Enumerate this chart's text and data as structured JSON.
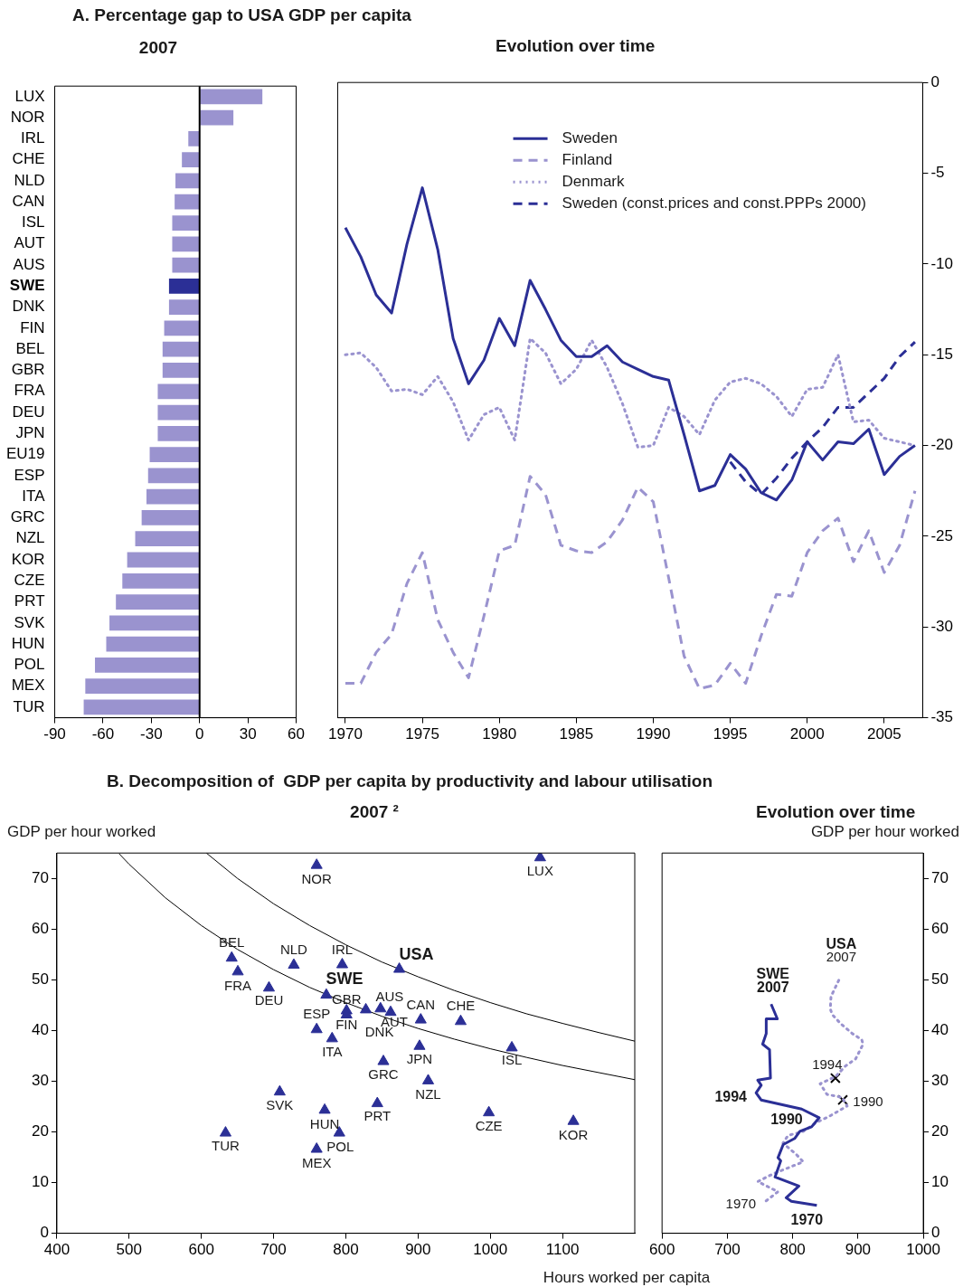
{
  "chart_data": [
    {
      "type": "bar",
      "orientation": "horizontal",
      "title": "A. Percentage gap to USA GDP per capita",
      "subtitle": "2007",
      "categories": [
        "LUX",
        "NOR",
        "IRL",
        "CHE",
        "NLD",
        "CAN",
        "ISL",
        "AUT",
        "AUS",
        "SWE",
        "DNK",
        "FIN",
        "BEL",
        "GBR",
        "FRA",
        "DEU",
        "JPN",
        "EU19",
        "ESP",
        "ITA",
        "GRC",
        "NZL",
        "KOR",
        "CZE",
        "PRT",
        "SVK",
        "HUN",
        "POL",
        "MEX",
        "TUR"
      ],
      "values": [
        39,
        21,
        -7,
        -11,
        -15,
        -15.5,
        -17,
        -17,
        -17,
        -19,
        -19,
        -22,
        -23,
        -23,
        -26,
        -26,
        -26,
        -31,
        -32,
        -33,
        -36,
        -40,
        -45,
        -48,
        -52,
        -56,
        -58,
        -65,
        -71,
        -72
      ],
      "colors": [
        "#9a93cf",
        "#9a93cf",
        "#9a93cf",
        "#9a93cf",
        "#9a93cf",
        "#9a93cf",
        "#9a93cf",
        "#9a93cf",
        "#9a93cf",
        "#2b2f96",
        "#9a93cf",
        "#9a93cf",
        "#9a93cf",
        "#9a93cf",
        "#9a93cf",
        "#9a93cf",
        "#9a93cf",
        "#9a93cf",
        "#9a93cf",
        "#9a93cf",
        "#9a93cf",
        "#9a93cf",
        "#9a93cf",
        "#9a93cf",
        "#9a93cf",
        "#9a93cf",
        "#9a93cf",
        "#9a93cf",
        "#9a93cf",
        "#9a93cf"
      ],
      "xlim": [
        -90,
        60
      ],
      "xticks": [
        -90,
        -60,
        -30,
        0,
        30,
        60
      ]
    },
    {
      "type": "line",
      "title": "Evolution over time",
      "legend": "top",
      "x": [
        1970,
        1971,
        1972,
        1973,
        1974,
        1975,
        1976,
        1977,
        1978,
        1979,
        1980,
        1981,
        1982,
        1983,
        1984,
        1985,
        1986,
        1987,
        1988,
        1989,
        1990,
        1991,
        1992,
        1993,
        1994,
        1995,
        1996,
        1997,
        1998,
        1999,
        2000,
        2001,
        2002,
        2003,
        2004,
        2005,
        2006,
        2007
      ],
      "series": [
        {
          "name": "Sweden",
          "color": "#2b2f96",
          "line_style": "solid",
          "values": [
            -8.0,
            -9.6,
            -11.7,
            -12.7,
            -8.9,
            -5.8,
            -9.2,
            -14.1,
            -16.6,
            -15.3,
            -13.0,
            -14.5,
            -10.9,
            -12.5,
            -14.2,
            -15.1,
            -15.1,
            -14.5,
            -15.4,
            -15.8,
            -16.2,
            -16.4,
            -19.4,
            -22.5,
            -22.2,
            -20.5,
            -21.3,
            -22.6,
            -23.0,
            -21.9,
            -19.8,
            -20.8,
            -19.8,
            -19.9,
            -19.1,
            -21.6,
            -20.6,
            -20.0
          ]
        },
        {
          "name": "Finland",
          "color": "#9a93cf",
          "line_style": "dashed",
          "values": [
            -33.1,
            -33.1,
            -31.4,
            -30.4,
            -27.6,
            -25.9,
            -29.6,
            -31.4,
            -32.8,
            -29.4,
            -25.8,
            -25.5,
            -21.7,
            -22.7,
            -25.5,
            -25.8,
            -25.9,
            -25.3,
            -24.1,
            -22.3,
            -23.1,
            -27.3,
            -31.6,
            -33.4,
            -33.2,
            -32.0,
            -33.1,
            -30.5,
            -28.2,
            -28.3,
            -25.9,
            -24.7,
            -24.0,
            -26.4,
            -24.7,
            -27.0,
            -25.5,
            -22.5
          ]
        },
        {
          "name": "Denmark",
          "color": "#9a93cf",
          "line_style": "dotted",
          "values": [
            -15.0,
            -14.9,
            -15.7,
            -17.0,
            -16.9,
            -17.2,
            -16.2,
            -17.6,
            -19.7,
            -18.3,
            -17.9,
            -19.7,
            -14.1,
            -14.9,
            -16.6,
            -15.8,
            -14.2,
            -15.7,
            -17.7,
            -20.1,
            -20.0,
            -17.9,
            -18.4,
            -19.4,
            -17.5,
            -16.5,
            -16.3,
            -16.6,
            -17.3,
            -18.4,
            -16.9,
            -16.8,
            -15.0,
            -18.7,
            -18.6,
            -19.6,
            -19.8,
            -20.0
          ]
        },
        {
          "name": "Sweden (const.prices and const.PPPs 2000)",
          "color": "#2b2f96",
          "line_style": "dashed",
          "x": [
            1995,
            1996,
            1997,
            1998,
            1999,
            2000,
            2001,
            2002,
            2003,
            2004,
            2005,
            2006,
            2007
          ],
          "values": [
            -20.9,
            -22.0,
            -22.7,
            -21.8,
            -20.7,
            -19.8,
            -19.0,
            -17.9,
            -17.9,
            -17.1,
            -16.3,
            -15.1,
            -14.3
          ]
        }
      ],
      "xlim": [
        1969.5,
        2007.5
      ],
      "xticks": [
        1970,
        1975,
        1980,
        1985,
        1990,
        1995,
        2000,
        2005
      ],
      "ylim": [
        -35,
        0
      ],
      "yticks": [
        0,
        -5,
        -10,
        -15,
        -20,
        -25,
        -30,
        -35
      ]
    },
    {
      "type": "scatter",
      "title": "B. Decomposition of  GDP per capita by productivity and labour utilisation",
      "subtitle": "2007 ²",
      "ylabel": "GDP per hour worked",
      "series": [
        {
          "type": "scatter",
          "marker": "triangle",
          "color": "#2b2f96",
          "x": [
            759.6,
            1069,
            642,
            650.5,
            728,
            795,
            874,
            693.6,
            773,
            801,
            801,
            827.7,
            848,
            862,
            903.7,
            959,
            759.6,
            781,
            902,
            1029.8,
            852,
            914,
            708.5,
            843.6,
            770.7,
            998,
            1115,
            633.5,
            791,
            759.6
          ],
          "values": [
            72.6,
            74.1,
            54.3,
            51.6,
            52.9,
            53.0,
            52.1,
            48.4,
            47.0,
            43.9,
            43.1,
            44.1,
            44.3,
            43.6,
            42.1,
            41.8,
            40.2,
            38.4,
            36.9,
            36.6,
            33.9,
            30.1,
            27.9,
            25.6,
            24.3,
            23.8,
            22.1,
            19.8,
            19.8,
            16.6
          ]
        },
        {
          "type": "line",
          "line_style": "solid",
          "marker": "none",
          "color": "#000000",
          "x": [
            486,
            500,
            550,
            600,
            650,
            700,
            750,
            800,
            850,
            900,
            950,
            1000,
            1050,
            1100,
            1150,
            1200
          ],
          "values": [
            74.9,
            72.8,
            66.2,
            60.7,
            56.0,
            52.0,
            48.5,
            45.5,
            42.8,
            40.4,
            38.3,
            36.4,
            34.7,
            33.1,
            31.7,
            30.3
          ]
        },
        {
          "type": "line",
          "line_style": "solid",
          "marker": "none",
          "color": "#000000",
          "x": [
            607,
            650,
            700,
            750,
            800,
            850,
            900,
            950,
            1000,
            1050,
            1100,
            1150,
            1200
          ],
          "values": [
            75.0,
            70.0,
            65.0,
            60.7,
            56.9,
            53.5,
            50.6,
            47.9,
            45.5,
            43.3,
            41.4,
            39.6,
            37.9
          ]
        }
      ],
      "annotations": [
        {
          "text": "NOR",
          "x": 759.6,
          "y": 72.6
        },
        {
          "text": "LUX",
          "x": 1069,
          "y": 74.1
        },
        {
          "text": "BEL",
          "x": 642,
          "y": 54.3
        },
        {
          "text": "FRA",
          "x": 650.5,
          "y": 51.6
        },
        {
          "text": "NLD",
          "x": 728,
          "y": 52.9
        },
        {
          "text": "IRL",
          "x": 795,
          "y": 53.0
        },
        {
          "text": "USA",
          "x": 874,
          "y": 52.1
        },
        {
          "text": "SWE",
          "x": 773,
          "y": 47.0
        },
        {
          "text": "DEU",
          "x": 693.6,
          "y": 48.4
        },
        {
          "text": "GBR",
          "x": 801,
          "y": 43.9
        },
        {
          "text": "AUS",
          "x": 848,
          "y": 44.3
        },
        {
          "text": "CAN",
          "x": 903.7,
          "y": 42.1
        },
        {
          "text": "CHE",
          "x": 959,
          "y": 41.8
        },
        {
          "text": "ESP",
          "x": 759.6,
          "y": 40.2
        },
        {
          "text": "FIN",
          "x": 801,
          "y": 43.1
        },
        {
          "text": "AUT",
          "x": 862,
          "y": 43.6
        },
        {
          "text": "DNK",
          "x": 827.7,
          "y": 44.1
        },
        {
          "text": "ITA",
          "x": 781,
          "y": 38.4
        },
        {
          "text": "JPN",
          "x": 902,
          "y": 36.9
        },
        {
          "text": "ISL",
          "x": 1029.8,
          "y": 36.6
        },
        {
          "text": "GRC",
          "x": 852,
          "y": 33.9
        },
        {
          "text": "NZL",
          "x": 914,
          "y": 30.1
        },
        {
          "text": "SVK",
          "x": 708.5,
          "y": 27.9
        },
        {
          "text": "PRT",
          "x": 843.6,
          "y": 25.6
        },
        {
          "text": "HUN",
          "x": 770.7,
          "y": 24.3
        },
        {
          "text": "CZE",
          "x": 998,
          "y": 23.8
        },
        {
          "text": "KOR",
          "x": 1115,
          "y": 22.1
        },
        {
          "text": "TUR",
          "x": 633.5,
          "y": 19.8
        },
        {
          "text": "POL",
          "x": 791,
          "y": 19.8
        },
        {
          "text": "MEX",
          "x": 759.6,
          "y": 16.6
        }
      ],
      "xlim": [
        400,
        1200
      ],
      "xticks": [
        400,
        500,
        600,
        700,
        800,
        900,
        1000,
        1100
      ],
      "ylim": [
        0,
        75
      ],
      "yticks": [
        0,
        10,
        20,
        30,
        40,
        50,
        60,
        70
      ]
    },
    {
      "type": "line",
      "title": "Evolution over time",
      "ylabel": "GDP per hour worked",
      "xlabel": "Hours worked per capita",
      "series": [
        {
          "type": "line",
          "line_style": "solid",
          "color": "#2b2f96",
          "x": [
            837,
            798,
            790,
            809.5,
            773,
            781.7,
            777.5,
            785.5,
            803,
            811,
            829,
            840.6,
            813.8,
            751.7,
            744,
            751.8,
            746.6,
            766,
            764.6,
            754,
            759.5,
            759.5,
            776.5,
            767
          ],
          "values": [
            5.5,
            6.3,
            7.0,
            9.3,
            11.1,
            14.3,
            14.9,
            17.5,
            18.7,
            20.1,
            21.0,
            22.8,
            24.5,
            26.3,
            27.7,
            29.2,
            30.2,
            30.6,
            36.2,
            37.3,
            39.4,
            42.3,
            42.3,
            45.2
          ]
        },
        {
          "type": "line",
          "line_style": "dotted",
          "color": "#9a93cf",
          "x": [
            759.4,
            777.5,
            746.5,
            769.7,
            816.2,
            805.9,
            785.2,
            793,
            816.2,
            836.9,
            855,
            883.4,
            875.7,
            852.5,
            842.1,
            865.4,
            880.9,
            896.4,
            907.8,
            905.7,
            891.2,
            873.1,
            860.2,
            857.6,
            858.7,
            871.6
          ],
          "values": [
            6.4,
            8.2,
            10.2,
            11.7,
            14.1,
            15.5,
            17.8,
            19.3,
            20.1,
            21.9,
            23.0,
            25.1,
            26.8,
            27.4,
            29.5,
            30.9,
            33.0,
            34.4,
            37.3,
            38.2,
            39.4,
            41.4,
            43.2,
            44.3,
            46.7,
            50.2
          ]
        },
        {
          "type": "scatter",
          "marker": "cross",
          "color": "#000000",
          "x": [
            876.7,
            865.4
          ],
          "values": [
            26.3,
            30.6
          ]
        }
      ],
      "annotations": [
        {
          "text": "SWE",
          "x": 767,
          "y": 45.2
        },
        {
          "text": "2007",
          "x": 767,
          "y": 45.2
        },
        {
          "text": "1994",
          "x": 744,
          "y": 27.7
        },
        {
          "text": "1990",
          "x": 840.6,
          "y": 22.8
        },
        {
          "text": "1970",
          "x": 837,
          "y": 5.5
        },
        {
          "text": "USA",
          "x": 871.6,
          "y": 50.2
        },
        {
          "text": "2007",
          "x": 871.6,
          "y": 50.2
        },
        {
          "text": "1994",
          "x": 865.4,
          "y": 30.6
        },
        {
          "text": "1990",
          "x": 876.7,
          "y": 26.3
        },
        {
          "text": "1970",
          "x": 759.4,
          "y": 6.4
        }
      ],
      "xlim": [
        600,
        1000
      ],
      "xticks": [
        600,
        700,
        800,
        900,
        1000
      ],
      "ylim": [
        0,
        75
      ],
      "yticks": [
        0,
        10,
        20,
        30,
        40,
        50,
        60,
        70
      ]
    }
  ]
}
